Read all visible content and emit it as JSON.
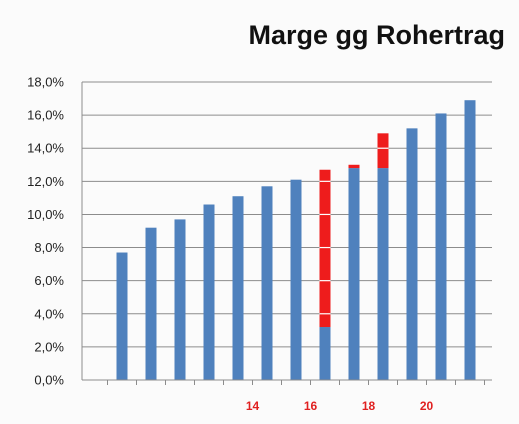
{
  "chart_data": {
    "type": "bar",
    "title": "Marge gg Rohertrag",
    "xlabel": "",
    "ylabel": "",
    "ylim": [
      0,
      18
    ],
    "y_ticks": [
      "0,0%",
      "2,0%",
      "4,0%",
      "6,0%",
      "8,0%",
      "10,0%",
      "12,0%",
      "14,0%",
      "16,0%",
      "18,0%"
    ],
    "grid": true,
    "categories": [
      "",
      "",
      "",
      "",
      "",
      "14",
      "",
      "16",
      "",
      "18",
      "",
      "20",
      ""
    ],
    "series": [
      {
        "values": [
          7.7,
          9.2,
          9.7,
          10.6,
          11.1,
          11.7,
          12.1,
          3.2,
          12.8,
          12.8,
          15.2,
          16.1,
          16.9
        ],
        "color": "#4f81bd"
      }
    ],
    "highlight_overlays": [
      {
        "index": 7,
        "from": 3.2,
        "to": 12.7,
        "color": "#ee1c1c"
      },
      {
        "index": 8,
        "from": 12.8,
        "to": 13.0,
        "color": "#ee1c1c"
      },
      {
        "index": 9,
        "from": 12.8,
        "to": 14.9,
        "color": "#ee1c1c"
      }
    ],
    "x_tick_color": "#e02020"
  }
}
